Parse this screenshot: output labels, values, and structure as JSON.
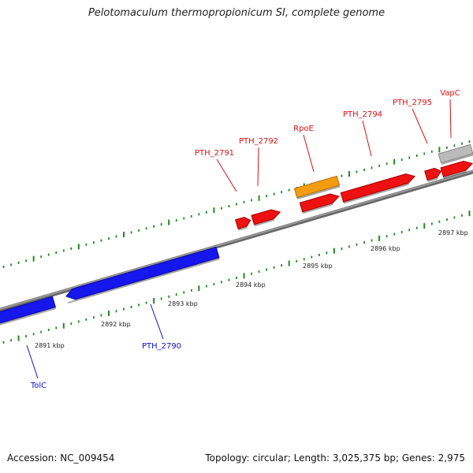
{
  "title": "Pelotomaculum thermopropionicum SI, complete genome",
  "footer": {
    "accession": "Accession: NC_009454",
    "summary": "Topology: circular; Length: 3,025,375 bp; Genes: 2,975"
  },
  "colors": {
    "forward_gene": "#ee1111",
    "reverse_gene": "#1616ee",
    "highlight_gene": "#f39c12",
    "unknown_gene": "#bbbbbb",
    "backbone": "#888888",
    "tick": "#228822",
    "forward_label": "#dd1111",
    "reverse_label": "#1111cc"
  },
  "kbp_ticks": [
    {
      "label": "2891 kbp"
    },
    {
      "label": "2892 kbp"
    },
    {
      "label": "2893 kbp"
    },
    {
      "label": "2894 kbp"
    },
    {
      "label": "2895 kbp"
    },
    {
      "label": "2896 kbp"
    },
    {
      "label": "2897 kbp"
    }
  ],
  "forward_labels": [
    {
      "text": "PTH_2791"
    },
    {
      "text": "PTH_2792"
    },
    {
      "text": "RpoE"
    },
    {
      "text": "PTH_2794"
    },
    {
      "text": "PTH_2795"
    },
    {
      "text": "VapC"
    }
  ],
  "reverse_labels": [
    {
      "text": "PTH_2790"
    },
    {
      "text": "TolC"
    }
  ]
}
